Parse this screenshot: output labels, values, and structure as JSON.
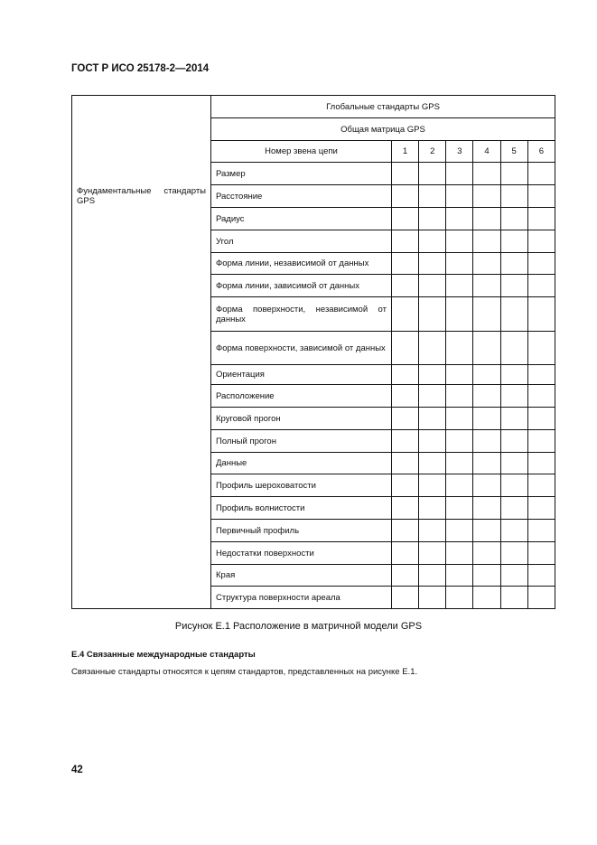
{
  "header": {
    "title": "ГОСТ Р ИСО 25178-2—2014"
  },
  "table": {
    "left_header": "Фундаментальные стандарты GPS",
    "global_header": "Глобальные стандарты GPS",
    "matrix_header": "Общая матрица GPS",
    "chain_label": "Номер звена цепи",
    "chain_numbers": [
      "1",
      "2",
      "3",
      "4",
      "5",
      "6"
    ],
    "rows": [
      "Размер",
      "Расстояние",
      "Радиус",
      "Угол",
      "Форма линии, независимой от данных",
      "Форма линии, зависимой от данных",
      "Форма поверхности, независимой от данных",
      "Форма поверхности, зависимой от данных",
      "Ориентация",
      "Расположение",
      "Круговой прогон",
      "Полный прогон",
      "Данные",
      "Профиль шероховатости",
      "Профиль волнистости",
      "Первичный профиль",
      "Недостатки поверхности",
      "Края",
      "Структура поверхности ареала"
    ]
  },
  "caption": "Рисунок Е.1 Расположение в матричной модели GPS",
  "section": {
    "title": "Е.4 Связанные международные стандарты",
    "text": "Связанные стандарты относятся к цепям стандартов, представленных на рисунке Е.1."
  },
  "page_number": "42"
}
